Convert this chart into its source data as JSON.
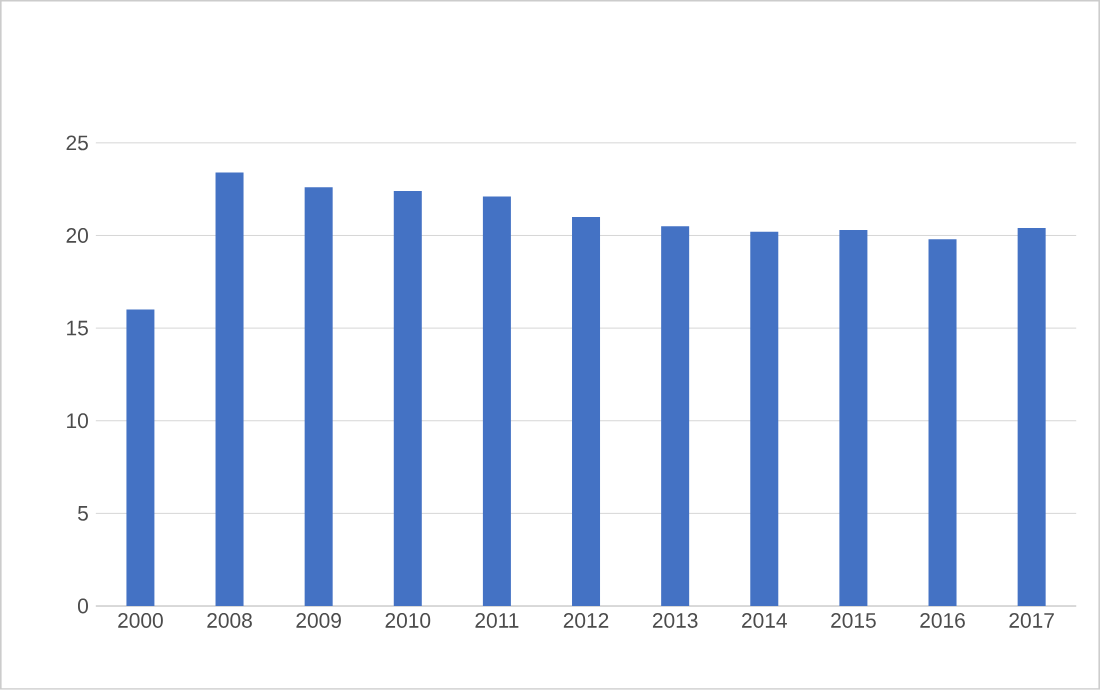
{
  "chart_data": {
    "type": "bar",
    "categories": [
      "2000",
      "2008",
      "2009",
      "2010",
      "2011",
      "2012",
      "2013",
      "2014",
      "2015",
      "2016",
      "2017"
    ],
    "values": [
      16.0,
      23.4,
      22.6,
      22.4,
      22.1,
      21.0,
      20.5,
      20.2,
      20.3,
      19.8,
      20.4
    ],
    "color": "#4472c4",
    "ylim": [
      0,
      25
    ],
    "yticks": [
      0,
      5,
      10,
      15,
      20,
      25
    ],
    "grid": "y"
  }
}
